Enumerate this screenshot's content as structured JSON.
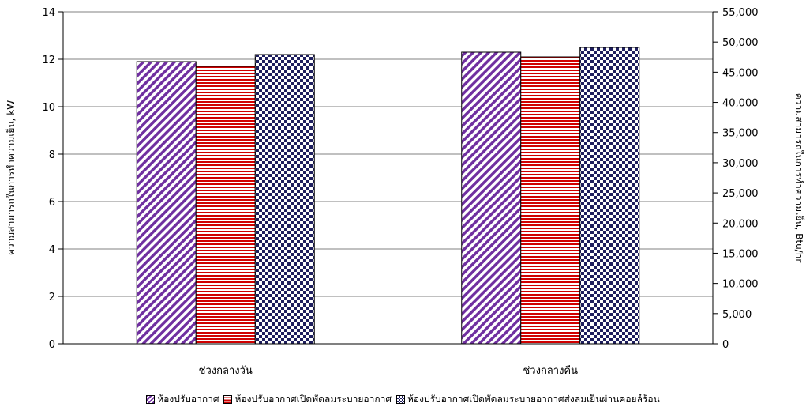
{
  "chart_data": {
    "type": "bar",
    "categories": [
      "ช่วงกลางวัน",
      "ช่วงกลางคืน"
    ],
    "series": [
      {
        "name": "ห้องปรับอากาศ",
        "values": [
          11.9,
          12.3
        ],
        "pattern": "diagonal",
        "color": "#7030a0"
      },
      {
        "name": "ห้องปรับอากาศเปิดพัดลมระบายอากาศ",
        "values": [
          11.7,
          12.1
        ],
        "pattern": "horizontal",
        "color": "#d00000"
      },
      {
        "name": "ห้องปรับอากาศเปิดพัดลมระบายอากาศส่งลมเย็นผ่านคอยล์ร้อน",
        "values": [
          12.2,
          12.5
        ],
        "pattern": "checker",
        "color": "#1f1f5f"
      }
    ],
    "ylabel": "ความสามารถในการทำความเย็น, kW",
    "ylabel_right": "ความสามารถในการทำความเย็น, Btu/hr",
    "ylim": [
      0,
      14
    ],
    "yticks": [
      "0",
      "2",
      "4",
      "6",
      "8",
      "10",
      "12",
      "14"
    ],
    "ylim_right": [
      0,
      55000
    ],
    "yticks_right": [
      "0",
      "5,000",
      "10,000",
      "15,000",
      "20,000",
      "25,000",
      "30,000",
      "35,000",
      "40,000",
      "45,000",
      "50,000",
      "55,000"
    ],
    "grid": true,
    "legend_position": "bottom"
  }
}
